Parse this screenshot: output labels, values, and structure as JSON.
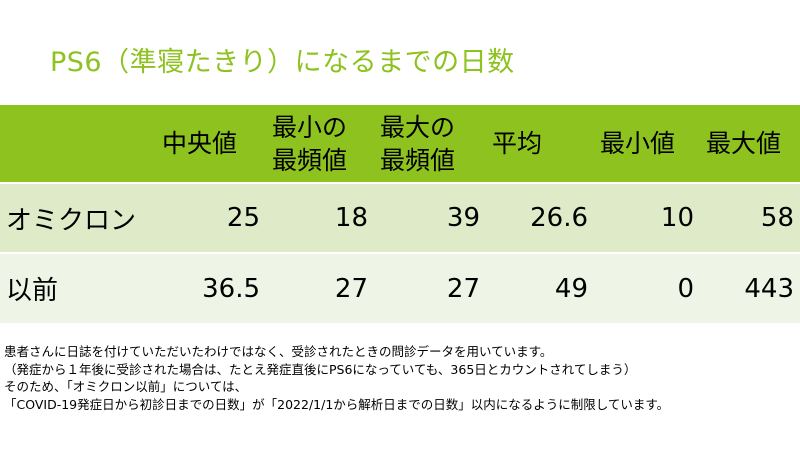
{
  "title": "PS6（準寝たきり）になるまでの日数",
  "table": {
    "headers": [
      "",
      "中央値",
      "最小の\n最頻値",
      "最大の\n最頻値",
      "平均",
      "最小値",
      "最大値"
    ],
    "rows": [
      {
        "label": "オミクロン",
        "values": [
          "25",
          "18",
          "39",
          "26.6",
          "10",
          "58"
        ]
      },
      {
        "label": "以前",
        "values": [
          "36.5",
          "27",
          "27",
          "49",
          "0",
          "443"
        ]
      }
    ]
  },
  "notes": [
    "患者さんに日誌を付けていただいたわけではなく、受診されたときの問診データを用いています。",
    "（発症から１年後に受診された場合は、たとえ発症直後にPS6になっていても、365日とカウントされてしまう）",
    "そのため、「オミクロン以前」については、",
    "「COVID-19発症日から初診日までの日数」が「2022/1/1から解析日までの日数」以内になるように制限しています。"
  ],
  "colors": {
    "accent": "#8dc21f",
    "row_odd": "#dfeac9",
    "row_even": "#eff5e6"
  }
}
